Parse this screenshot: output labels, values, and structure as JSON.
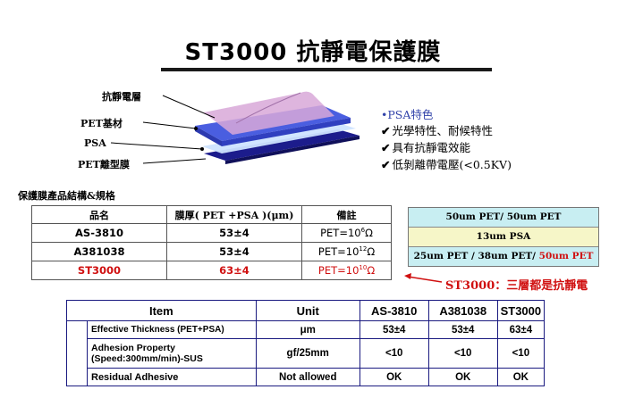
{
  "title": "ST3000 抗靜電保護膜",
  "diagram": {
    "labels": [
      "抗靜電層",
      "PET基材",
      "PSA",
      "PET離型膜"
    ],
    "features_title": "•PSA特色",
    "features": [
      "光學特性、耐候特性",
      "具有抗靜電效能",
      "低剝離帶電壓(<0.5KV)"
    ]
  },
  "product_table": {
    "title": "保護膜產品結構&規格",
    "headers": [
      "品名",
      "膜厚( PET +PSA )(μm)",
      "備註"
    ],
    "rows": [
      {
        "name": "AS-3810",
        "thickness": "53±4",
        "note_base": "PET=10",
        "note_exp": "6",
        "note_unit": "Ω"
      },
      {
        "name": "A381038",
        "thickness": "53±4",
        "note_base": "PET=10",
        "note_exp": "12",
        "note_unit": "Ω"
      },
      {
        "name": "ST3000",
        "thickness": "63±4",
        "note_base": "PET=10",
        "note_exp": "10",
        "note_unit": "Ω"
      }
    ]
  },
  "structure": {
    "layer1": "50um PET/ 50um PET",
    "layer2": "13um PSA",
    "layer3_prefix": "25um PET / 38um PET/ ",
    "layer3_highlight": "50um PET"
  },
  "callout": "ST3000：三層都是抗靜電",
  "spec_table": {
    "headers": [
      "Item",
      "Unit",
      "AS-3810",
      "A381038",
      "ST3000"
    ],
    "rows": [
      {
        "item": "Effective Thickness (PET+PSA)",
        "unit": "μm",
        "v1": "53±4",
        "v2": "53±4",
        "v3": "63±4"
      },
      {
        "item": "Adhesion Property\n(Speed:300mm/min)-SUS",
        "unit": "gf/25mm",
        "v1": "<10",
        "v2": "<10",
        "v3": "<10"
      },
      {
        "item": "Residual Adhesive",
        "unit": "Not allowed",
        "v1": "OK",
        "v2": "OK",
        "v3": "OK"
      }
    ]
  },
  "colors": {
    "red": "#d01010",
    "navy": "#1a1a80",
    "layer_blue": "#3344cc"
  }
}
